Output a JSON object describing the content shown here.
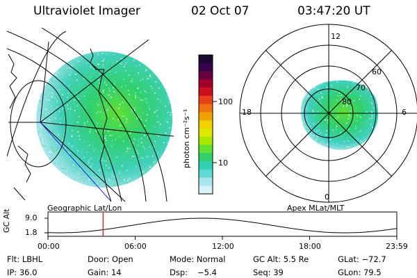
{
  "header": {
    "title": "Ultraviolet Imager",
    "date": "02 Oct 07",
    "time": "03:47:20 UT"
  },
  "colorbar": {
    "label": "photon cm⁻²s⁻¹",
    "ticks": [
      "100",
      "10"
    ],
    "colors": [
      "#1a0930",
      "#3a0050",
      "#6a0040",
      "#a0002a",
      "#cc1020",
      "#e84018",
      "#f07010",
      "#f0a000",
      "#f0d000",
      "#e0e800",
      "#a8e800",
      "#60e030",
      "#30d070",
      "#30d0b0",
      "#60d8d8",
      "#a8e4ec",
      "#d8f0f4"
    ]
  },
  "left_map": {
    "caption": "Geographic Lat/Lon"
  },
  "right_map": {
    "caption": "Apex MLat/MLT",
    "mlt_labels": [
      "12",
      "18",
      "6",
      "0"
    ],
    "lat_labels": [
      "60",
      "70",
      "80"
    ]
  },
  "timeline": {
    "ylabel": "GC Alt",
    "yticks": [
      "9.0",
      "1.8"
    ],
    "xticks": [
      "00:00",
      "06:00",
      "12:00",
      "18:00",
      "23:59"
    ],
    "current_hour": 3.79,
    "cursor_color": "#e00000"
  },
  "footer": {
    "filter": "Flt: LBHL",
    "door": "Door: Open",
    "mode": "Mode: Normal",
    "gc_alt": "GC Alt: 5.5 Re",
    "glat": "GLat: −72.7",
    "ip": "IP: 36.0",
    "gain": "Gain: 14",
    "dsp_label": "Dsp:",
    "dsp_value": "−5.4",
    "seq": "Seq: 39",
    "glon": "GLon:  79.5"
  }
}
